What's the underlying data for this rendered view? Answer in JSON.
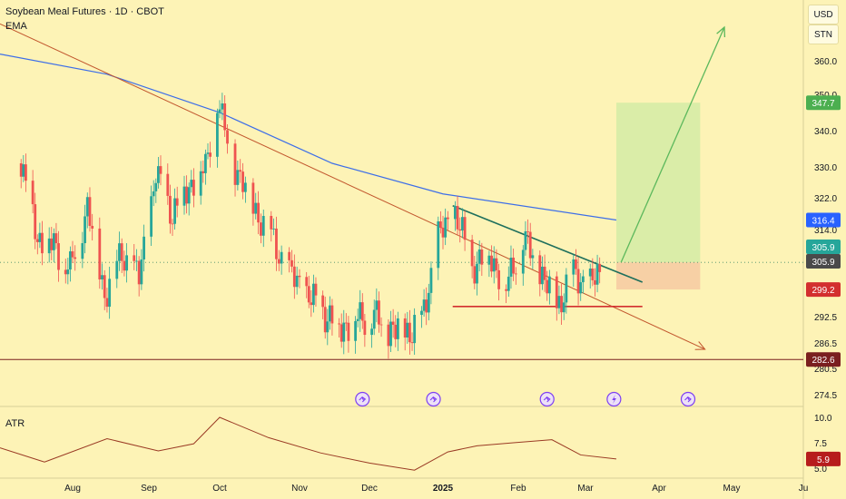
{
  "header": {
    "title": "Soybean Meal Futures · 1D · CBOT",
    "indicator": "EMA"
  },
  "scale_buttons": [
    "USD",
    "STN"
  ],
  "chart_data": {
    "type": "candlestick",
    "title": "Soybean Meal Futures · 1D · CBOT",
    "price_axis": {
      "ticks": [
        360.0,
        350.0,
        340.0,
        330.0,
        322.0,
        314.0,
        292.5,
        286.5,
        280.5,
        274.5
      ]
    },
    "time_axis": {
      "labels": [
        "Aug",
        "Sep",
        "Oct",
        "Nov",
        "Dec",
        "2025",
        "Feb",
        "Mar",
        "Apr",
        "May",
        "Ju"
      ]
    },
    "price_badges": [
      {
        "label": "347.7",
        "value": 347.7,
        "color": "#4caf50"
      },
      {
        "label": "316.4",
        "value": 316.4,
        "color": "#2962ff"
      },
      {
        "label": "305.9",
        "value": 305.9,
        "color": "#26a69a"
      },
      {
        "label": "305.9",
        "value": 305.9,
        "color": "#4a4a4a"
      },
      {
        "label": "299.2",
        "value": 299.2,
        "color": "#d32f2f"
      },
      {
        "label": "282.6",
        "value": 282.6,
        "color": "#7a1f1f"
      }
    ],
    "close_series": [
      {
        "date": "2024-07-10",
        "close": 331
      },
      {
        "date": "2024-07-17",
        "close": 312
      },
      {
        "date": "2024-07-24",
        "close": 310
      },
      {
        "date": "2024-07-31",
        "close": 304
      },
      {
        "date": "2024-08-07",
        "close": 320
      },
      {
        "date": "2024-08-14",
        "close": 298
      },
      {
        "date": "2024-08-21",
        "close": 308
      },
      {
        "date": "2024-08-28",
        "close": 302
      },
      {
        "date": "2024-09-04",
        "close": 328
      },
      {
        "date": "2024-09-11",
        "close": 318
      },
      {
        "date": "2024-09-18",
        "close": 325
      },
      {
        "date": "2024-09-25",
        "close": 330
      },
      {
        "date": "2024-09-30",
        "close": 348
      },
      {
        "date": "2024-10-07",
        "close": 330
      },
      {
        "date": "2024-10-14",
        "close": 320
      },
      {
        "date": "2024-10-21",
        "close": 312
      },
      {
        "date": "2024-10-28",
        "close": 303
      },
      {
        "date": "2024-11-04",
        "close": 298
      },
      {
        "date": "2024-11-11",
        "close": 294
      },
      {
        "date": "2024-11-18",
        "close": 290
      },
      {
        "date": "2024-11-25",
        "close": 292
      },
      {
        "date": "2024-12-02",
        "close": 293
      },
      {
        "date": "2024-12-09",
        "close": 290
      },
      {
        "date": "2024-12-16",
        "close": 289
      },
      {
        "date": "2024-12-23",
        "close": 291
      },
      {
        "date": "2024-12-30",
        "close": 312
      },
      {
        "date": "2025-01-06",
        "close": 318
      },
      {
        "date": "2025-01-13",
        "close": 305
      },
      {
        "date": "2025-01-20",
        "close": 308
      },
      {
        "date": "2025-01-27",
        "close": 300
      },
      {
        "date": "2025-02-03",
        "close": 312
      },
      {
        "date": "2025-02-10",
        "close": 304
      },
      {
        "date": "2025-02-17",
        "close": 295
      },
      {
        "date": "2025-02-24",
        "close": 303
      },
      {
        "date": "2025-03-03",
        "close": 300
      },
      {
        "date": "2025-03-10",
        "close": 305.9
      }
    ],
    "ema": [
      {
        "date": "2024-07-01",
        "value": 362
      },
      {
        "date": "2024-08-15",
        "value": 356
      },
      {
        "date": "2024-10-01",
        "value": 345
      },
      {
        "date": "2024-11-15",
        "value": 331
      },
      {
        "date": "2025-01-01",
        "value": 323
      },
      {
        "date": "2025-03-14",
        "value": 316.4
      }
    ],
    "trendlines": [
      {
        "name": "long downtrend",
        "from": {
          "date": "2024-07-01",
          "price": 371
        },
        "to": {
          "date": "2025-04-20",
          "price": 285
        }
      },
      {
        "name": "triangle resistance",
        "from": {
          "date": "2025-01-05",
          "price": 320
        },
        "to": {
          "date": "2025-03-25",
          "price": 301
        }
      },
      {
        "name": "triangle support",
        "from": {
          "date": "2025-01-05",
          "price": 295
        },
        "to": {
          "date": "2025-03-25",
          "price": 295
        }
      },
      {
        "name": "support",
        "from": {
          "date": "2024-07-01",
          "price": 282.6
        },
        "to": {
          "date": "2025-06-01",
          "price": 282.6
        }
      },
      {
        "name": "projection",
        "from": {
          "date": "2025-03-16",
          "price": 305.9
        },
        "to": {
          "date": "2025-04-28",
          "price": 370
        }
      }
    ],
    "position": {
      "entry": 305.9,
      "target": 347.7,
      "stop": 299.2
    },
    "atr": {
      "name": "ATR",
      "ticks": [
        10.0,
        7.5,
        5.0
      ],
      "last": 5.9,
      "values": [
        {
          "date": "2024-07-01",
          "value": 7.0
        },
        {
          "date": "2024-07-20",
          "value": 5.6
        },
        {
          "date": "2024-08-15",
          "value": 7.9
        },
        {
          "date": "2024-09-05",
          "value": 6.7
        },
        {
          "date": "2024-09-20",
          "value": 7.4
        },
        {
          "date": "2024-10-01",
          "value": 10.0
        },
        {
          "date": "2024-10-20",
          "value": 8.0
        },
        {
          "date": "2024-11-10",
          "value": 6.5
        },
        {
          "date": "2024-12-01",
          "value": 5.5
        },
        {
          "date": "2024-12-20",
          "value": 4.8
        },
        {
          "date": "2025-01-03",
          "value": 6.6
        },
        {
          "date": "2025-01-15",
          "value": 7.2
        },
        {
          "date": "2025-01-30",
          "value": 7.5
        },
        {
          "date": "2025-02-15",
          "value": 7.8
        },
        {
          "date": "2025-02-27",
          "value": 6.3
        },
        {
          "date": "2025-03-14",
          "value": 5.9
        }
      ]
    },
    "events": [
      "2024-11-28",
      "2024-12-28",
      "2025-02-13",
      "2025-03-13",
      "2025-04-13"
    ]
  }
}
